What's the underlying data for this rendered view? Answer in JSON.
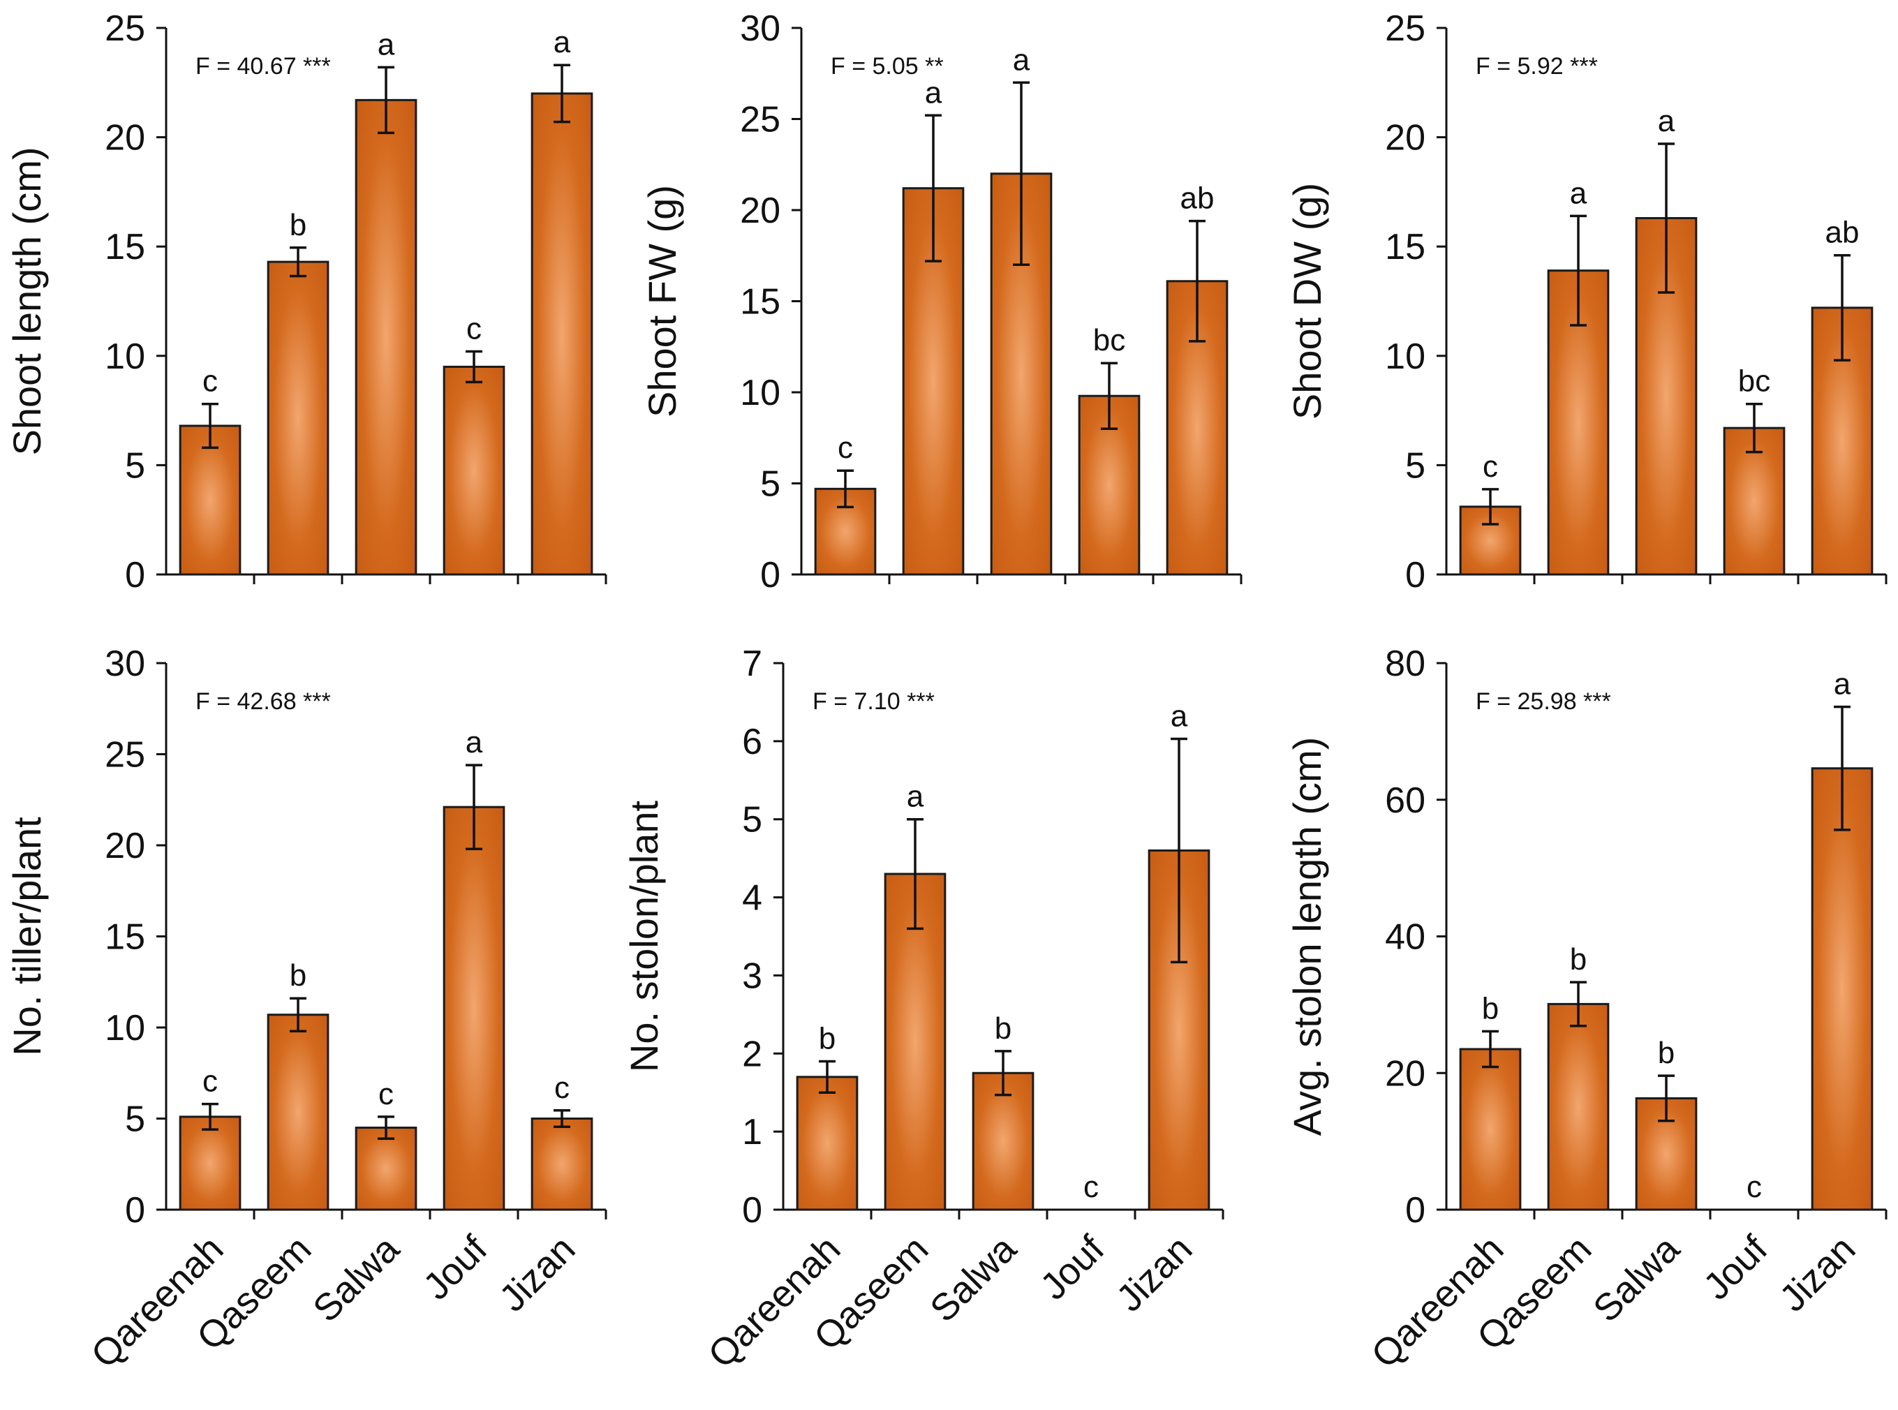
{
  "figure": {
    "bar_color": "#C55A11",
    "bar_highlight": "#F2A66E",
    "edge_color": "#1a1a1a"
  },
  "chart_data": [
    {
      "type": "bar",
      "panel": "top-left",
      "ylabel": "Shoot length (cm)",
      "ylim": [
        0,
        25
      ],
      "yticks": [
        0,
        5,
        10,
        15,
        20,
        25
      ],
      "categories": [
        "Qareenah",
        "Qaseem",
        "Salwa",
        "Jouf",
        "Jizan"
      ],
      "values": [
        6.8,
        14.3,
        21.7,
        9.5,
        22.0
      ],
      "errors": [
        1.0,
        0.65,
        1.5,
        0.7,
        1.3
      ],
      "letters": [
        "c",
        "b",
        "a",
        "c",
        "a"
      ],
      "stat": "F = 40.67 ***",
      "show_xlabels": false
    },
    {
      "type": "bar",
      "panel": "top-middle",
      "ylabel": "Shoot FW (g)",
      "ylim": [
        0,
        30
      ],
      "yticks": [
        0,
        5,
        10,
        15,
        20,
        25,
        30
      ],
      "categories": [
        "Qareenah",
        "Qaseem",
        "Salwa",
        "Jouf",
        "Jizan"
      ],
      "values": [
        4.7,
        21.2,
        22.0,
        9.8,
        16.1
      ],
      "errors": [
        1.0,
        4.0,
        5.0,
        1.8,
        3.3
      ],
      "letters": [
        "c",
        "a",
        "a",
        "bc",
        "ab"
      ],
      "stat": "F = 5.05 **",
      "show_xlabels": false
    },
    {
      "type": "bar",
      "panel": "top-right",
      "ylabel": "Shoot DW (g)",
      "ylim": [
        0,
        25
      ],
      "yticks": [
        0,
        5,
        10,
        15,
        20,
        25
      ],
      "categories": [
        "Qareenah",
        "Qaseem",
        "Salwa",
        "Jouf",
        "Jizan"
      ],
      "values": [
        3.1,
        13.9,
        16.3,
        6.7,
        12.2
      ],
      "errors": [
        0.8,
        2.5,
        3.4,
        1.1,
        2.4
      ],
      "letters": [
        "c",
        "a",
        "a",
        "bc",
        "ab"
      ],
      "stat": "F = 5.92 ***",
      "show_xlabels": false
    },
    {
      "type": "bar",
      "panel": "bottom-left",
      "ylabel": "No. tiller/plant",
      "ylim": [
        0,
        30
      ],
      "yticks": [
        0,
        5,
        10,
        15,
        20,
        25,
        30
      ],
      "categories": [
        "Qareenah",
        "Qaseem",
        "Salwa",
        "Jouf",
        "Jizan"
      ],
      "values": [
        5.1,
        10.7,
        4.5,
        22.1,
        5.0
      ],
      "errors": [
        0.7,
        0.9,
        0.6,
        2.3,
        0.45
      ],
      "letters": [
        "c",
        "b",
        "c",
        "a",
        "c"
      ],
      "stat": "F = 42.68 ***",
      "show_xlabels": true
    },
    {
      "type": "bar",
      "panel": "bottom-middle",
      "ylabel": "No. stolon/plant",
      "ylim": [
        0,
        7
      ],
      "yticks": [
        0,
        1,
        2,
        3,
        4,
        5,
        6,
        7
      ],
      "categories": [
        "Qareenah",
        "Qaseem",
        "Salwa",
        "Jouf",
        "Jizan"
      ],
      "values": [
        1.7,
        4.3,
        1.75,
        0,
        4.6
      ],
      "errors": [
        0.2,
        0.7,
        0.28,
        0,
        1.43
      ],
      "letters": [
        "b",
        "a",
        "b",
        "c",
        "a"
      ],
      "stat": "F = 7.10 ***",
      "show_xlabels": true
    },
    {
      "type": "bar",
      "panel": "bottom-right",
      "ylabel": "Avg. stolon length (cm)",
      "ylim": [
        0,
        80
      ],
      "yticks": [
        0,
        20,
        40,
        60,
        80
      ],
      "categories": [
        "Qareenah",
        "Qaseem",
        "Salwa",
        "Jouf",
        "Jizan"
      ],
      "values": [
        23.5,
        30.1,
        16.3,
        0,
        64.6
      ],
      "errors": [
        2.6,
        3.2,
        3.3,
        0,
        9.0
      ],
      "letters": [
        "b",
        "b",
        "b",
        "c",
        "a"
      ],
      "stat": "F = 25.98 ***",
      "show_xlabels": true
    }
  ]
}
